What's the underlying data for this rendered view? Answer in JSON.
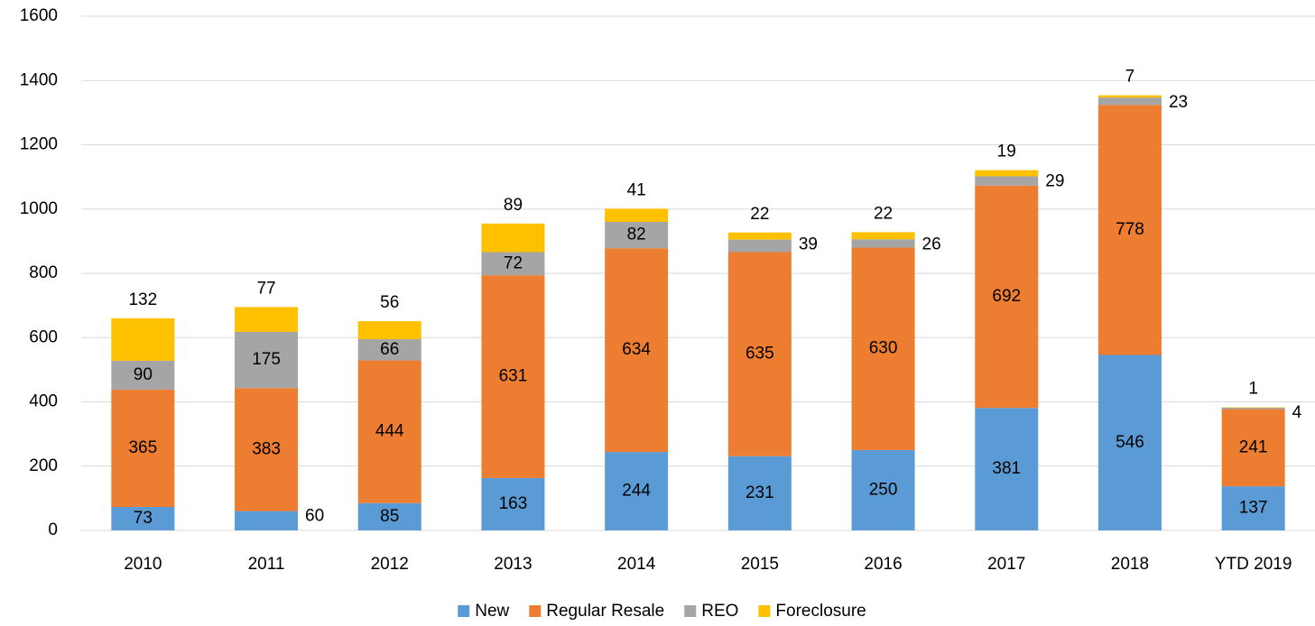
{
  "chart_data": {
    "type": "stacked_bar",
    "categories": [
      "2010",
      "2011",
      "2012",
      "2013",
      "2014",
      "2015",
      "2016",
      "2017",
      "2018",
      "YTD 2019"
    ],
    "series": [
      {
        "name": "New",
        "color": "#5b9bd5",
        "values": [
          73,
          60,
          85,
          163,
          244,
          231,
          250,
          381,
          546,
          137
        ]
      },
      {
        "name": "Regular Resale",
        "color": "#ed7d31",
        "values": [
          365,
          383,
          444,
          631,
          634,
          635,
          630,
          692,
          778,
          241
        ]
      },
      {
        "name": "REO",
        "color": "#a5a5a5",
        "values": [
          90,
          175,
          66,
          72,
          82,
          39,
          26,
          29,
          23,
          4
        ]
      },
      {
        "name": "Foreclosure",
        "color": "#ffc000",
        "values": [
          132,
          77,
          56,
          89,
          41,
          22,
          22,
          19,
          7,
          1
        ]
      }
    ],
    "ylim": [
      0,
      1600
    ],
    "yticks": [
      0,
      200,
      400,
      600,
      800,
      1000,
      1200,
      1400,
      1600
    ],
    "grid": true,
    "legend": "bottom"
  }
}
